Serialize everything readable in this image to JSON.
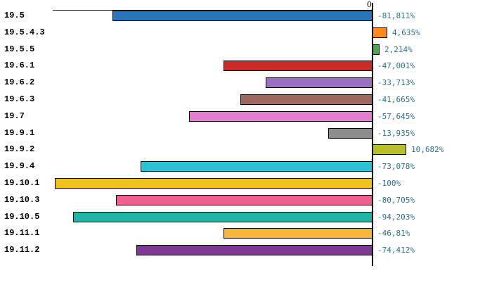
{
  "chart_data": {
    "type": "bar",
    "orientation": "horizontal",
    "title": "",
    "xlabel": "",
    "ylabel": "",
    "zero_tick_label": "0",
    "xlim": [
      -100,
      12
    ],
    "grid": false,
    "legend": "none",
    "categories": [
      "19.5",
      "19.5.4.3",
      "19.5.5",
      "19.6.1",
      "19.6.2",
      "19.6.3",
      "19.7",
      "19.9.1",
      "19.9.2",
      "19.9.4",
      "19.10.1",
      "19.10.3",
      "19.10.5",
      "19.11.1",
      "19.11.2"
    ],
    "values": [
      -81.811,
      4.635,
      2.214,
      -47.001,
      -33.713,
      -41.665,
      -57.645,
      -13.935,
      10.682,
      -73.078,
      -100,
      -80.705,
      -94.203,
      -46.81,
      -74.412
    ],
    "value_labels": [
      "-81,811%",
      "4,635%",
      "2,214%",
      "-47,001%",
      "-33,713%",
      "-41,665%",
      "-57,645%",
      "-13,935%",
      "10,682%",
      "-73,078%",
      "-100%",
      "-80,705%",
      "-94,203%",
      "-46,81%",
      "-74,412%"
    ],
    "bar_colors": [
      "#2D74B6",
      "#FF8C1A",
      "#4CA64C",
      "#CC2A27",
      "#9A6FC4",
      "#9E675F",
      "#E47BCF",
      "#8C8C8C",
      "#B8BE2C",
      "#27C3D4",
      "#EFC319",
      "#F0608F",
      "#1FB5A9",
      "#F9B43B",
      "#7D3795"
    ],
    "value_label_color": "#2D7092",
    "axis_color": "#000000"
  }
}
